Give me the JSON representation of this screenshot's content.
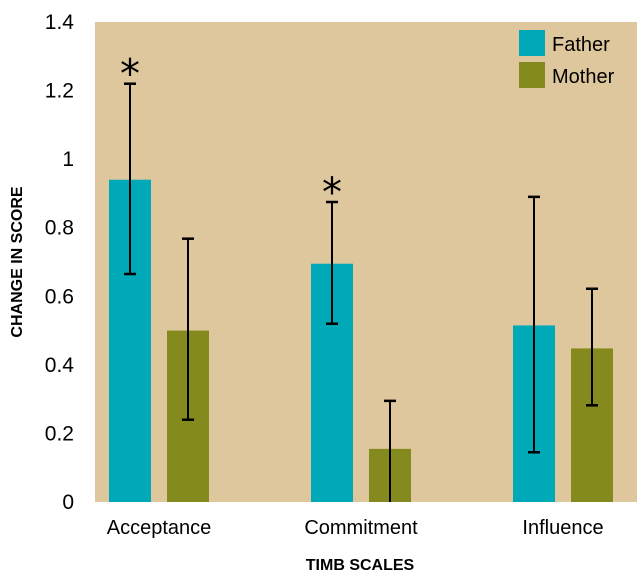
{
  "chart_data": {
    "type": "bar",
    "title": "",
    "xlabel": "TIMB SCALES",
    "ylabel": "CHANGE IN SCORE",
    "ylim": [
      0,
      1.4
    ],
    "yticks": [
      "0",
      "0.2",
      "0.4",
      "0.6",
      "0.8",
      "1",
      "1.2",
      "1.4"
    ],
    "categories": [
      "Acceptance",
      "Commitment",
      "Influence"
    ],
    "series": [
      {
        "name": "Father",
        "color": "#00a9b7",
        "values": [
          0.94,
          0.695,
          0.515
        ],
        "error_low": [
          0.665,
          0.52,
          0.145
        ],
        "error_high": [
          1.22,
          0.875,
          0.89
        ],
        "significant": [
          true,
          true,
          false
        ]
      },
      {
        "name": "Mother",
        "color": "#858a1e",
        "values": [
          0.5,
          0.155,
          0.448
        ],
        "error_low": [
          0.24,
          0.0,
          0.282
        ],
        "error_high": [
          0.768,
          0.295,
          0.622
        ],
        "significant": [
          false,
          false,
          false
        ]
      }
    ],
    "significance_symbol": "*",
    "legend_position": "top-right",
    "plot_background": "#dfc79d",
    "grid": false
  }
}
